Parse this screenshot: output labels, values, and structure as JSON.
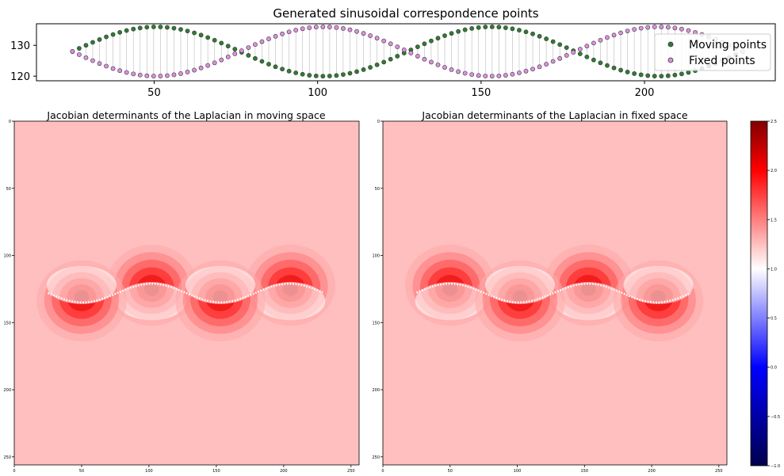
{
  "chart_data": [
    {
      "type": "scatter",
      "title": "Generated sinusoidal correspondence points",
      "xlabel": "",
      "ylabel": "",
      "xlim": [
        14,
        240
      ],
      "ylim": [
        137,
        118.5
      ],
      "x_ticks": [
        50,
        100,
        150,
        200
      ],
      "y_ticks": [
        120,
        130
      ],
      "grid": false,
      "legend_position": "top-right",
      "curve": {
        "x_start": 25,
        "x_end": 230,
        "count": 100,
        "center_y": 128,
        "amplitude": 8,
        "period": 102.5
      },
      "series": [
        {
          "name": "Moving points",
          "color": "#2e7d32",
          "phase_sign": 1
        },
        {
          "name": "Fixed points",
          "color": "#e08ee0",
          "phase_sign": -1
        }
      ]
    },
    {
      "type": "heatmap",
      "title": "Jacobian determinants of the Laplacian in moving space",
      "xlim": [
        0,
        256
      ],
      "ylim": [
        256,
        0
      ],
      "x_ticks": [
        0,
        50,
        100,
        150,
        200,
        250
      ],
      "y_ticks": [
        0,
        50,
        100,
        150,
        200,
        250
      ],
      "background_value": 1.25,
      "min_at": [
        [
          50,
          135
        ],
        [
          153,
          135
        ]
      ],
      "max_at": [
        [
          102,
          121
        ],
        [
          205,
          121
        ]
      ]
    },
    {
      "type": "heatmap",
      "title": "Jacobian determinants of the Laplacian in fixed space",
      "xlim": [
        0,
        256
      ],
      "ylim": [
        256,
        0
      ],
      "x_ticks": [
        0,
        50,
        100,
        150,
        200,
        250
      ],
      "y_ticks": [
        0,
        50,
        100,
        150,
        200,
        250
      ],
      "background_value": 1.25,
      "max_at": [
        [
          50,
          121
        ],
        [
          153,
          121
        ]
      ],
      "min_at": [
        [
          102,
          135
        ],
        [
          205,
          135
        ]
      ]
    }
  ],
  "colorbar": {
    "colormap": "seismic",
    "range": [
      -1.0,
      2.5
    ],
    "ticks": [
      "2.5",
      "2.0",
      "1.5",
      "1.0",
      "0.5",
      "0.0",
      "−0.5",
      "−1.0"
    ],
    "tick_values": [
      2.5,
      2.0,
      1.5,
      1.0,
      0.5,
      0.0,
      -0.5,
      -1.0
    ]
  }
}
